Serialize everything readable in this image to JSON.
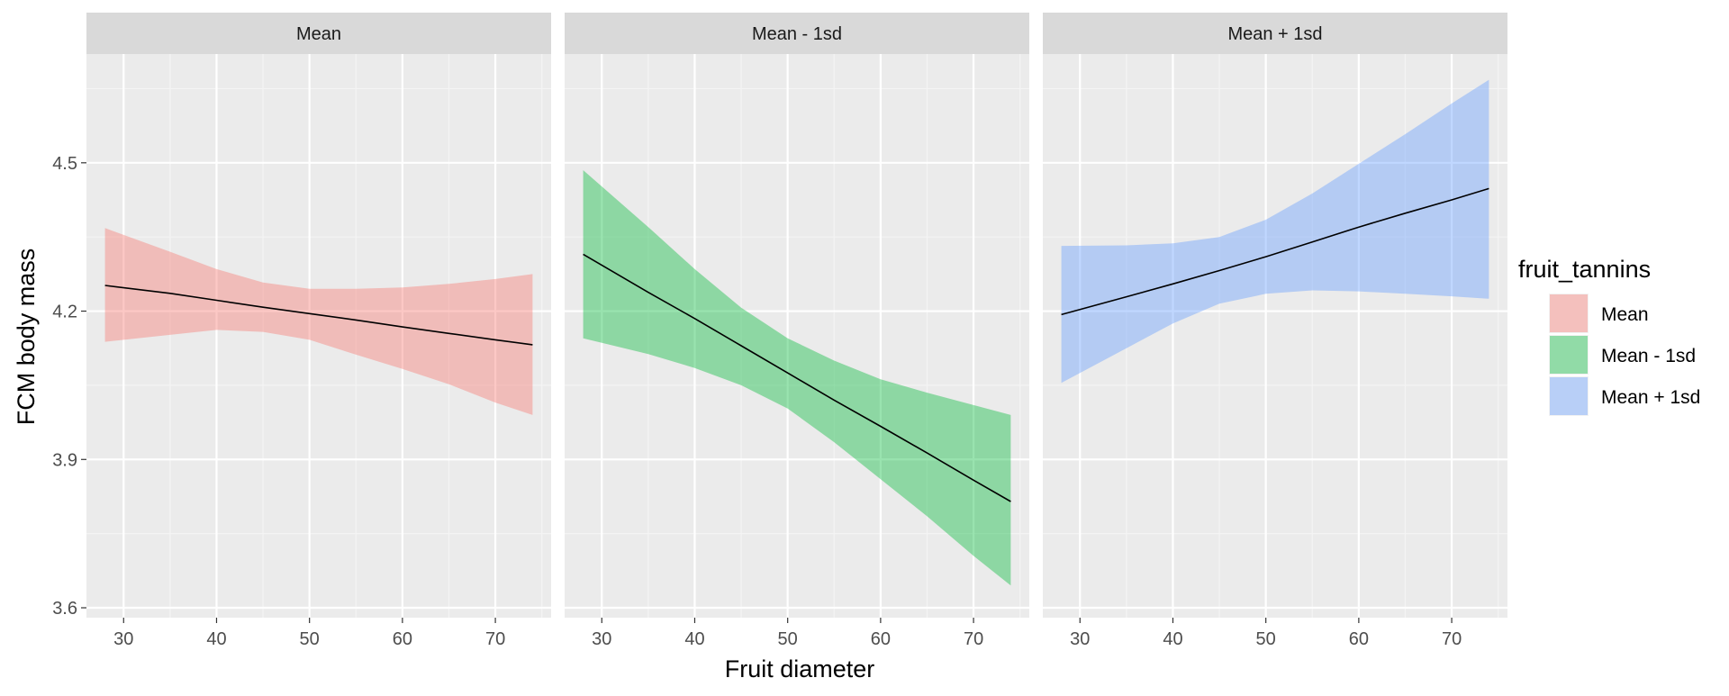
{
  "chart_data": {
    "type": "area",
    "xlabel": "Fruit diameter",
    "ylabel": "FCM body mass",
    "xlim": [
      26,
      76
    ],
    "ylim": [
      3.58,
      4.72
    ],
    "x_ticks": [
      30,
      40,
      50,
      60,
      70
    ],
    "y_ticks": [
      3.6,
      3.9,
      4.2,
      4.5
    ],
    "x_tick_labels": [
      "30",
      "40",
      "50",
      "60",
      "70"
    ],
    "y_tick_labels": [
      "3.6",
      "3.9",
      "4.2",
      "4.5"
    ],
    "grid": true,
    "legend": {
      "title": "fruit_tannins",
      "position": "right",
      "entries": [
        "Mean",
        "Mean - 1sd",
        "Mean + 1sd"
      ]
    },
    "panels": [
      {
        "facet": "Mean",
        "color": "#F8766D",
        "x": [
          28,
          35,
          40,
          45,
          50,
          55,
          60,
          65,
          70,
          74
        ],
        "fit": [
          4.252,
          4.236,
          4.222,
          4.208,
          4.195,
          4.182,
          4.168,
          4.155,
          4.142,
          4.132
        ],
        "lower": [
          4.138,
          4.152,
          4.162,
          4.158,
          4.142,
          4.112,
          4.083,
          4.052,
          4.015,
          3.99
        ],
        "upper": [
          4.368,
          4.32,
          4.285,
          4.258,
          4.245,
          4.245,
          4.248,
          4.255,
          4.265,
          4.275
        ]
      },
      {
        "facet": "Mean - 1sd",
        "color": "#00BA38",
        "x": [
          28,
          35,
          40,
          45,
          50,
          55,
          60,
          65,
          70,
          74
        ],
        "fit": [
          4.315,
          4.238,
          4.185,
          4.13,
          4.075,
          4.02,
          3.967,
          3.913,
          3.858,
          3.815
        ],
        "lower": [
          4.145,
          4.113,
          4.085,
          4.05,
          4.003,
          3.935,
          3.86,
          3.785,
          3.705,
          3.645
        ],
        "upper": [
          4.485,
          4.37,
          4.285,
          4.207,
          4.145,
          4.1,
          4.062,
          4.035,
          4.01,
          3.99
        ]
      },
      {
        "facet": "Mean + 1sd",
        "color": "#619CFF",
        "x": [
          28,
          35,
          40,
          45,
          50,
          55,
          60,
          65,
          70,
          74
        ],
        "fit": [
          4.193,
          4.229,
          4.255,
          4.282,
          4.31,
          4.34,
          4.37,
          4.398,
          4.425,
          4.448
        ],
        "lower": [
          4.055,
          4.125,
          4.175,
          4.215,
          4.235,
          4.242,
          4.24,
          4.235,
          4.23,
          4.225
        ],
        "upper": [
          4.332,
          4.333,
          4.337,
          4.35,
          4.385,
          4.438,
          4.498,
          4.558,
          4.62,
          4.668
        ]
      }
    ]
  }
}
